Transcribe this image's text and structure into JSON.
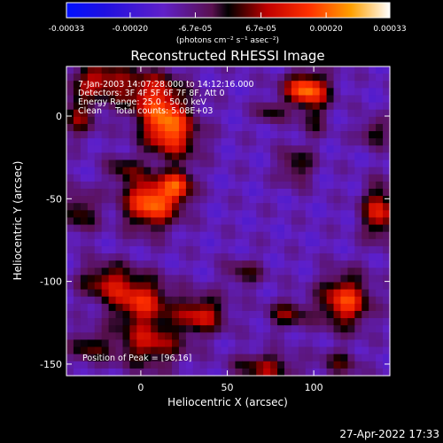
{
  "chart_data": {
    "type": "heatmap",
    "title": "Reconstructed RHESSI Image",
    "xlabel": "Heliocentric X (arcsec)",
    "ylabel": "Heliocentric Y (arcsec)",
    "xlim": [
      -43,
      144
    ],
    "ylim": [
      -157,
      30
    ],
    "xticks": [
      {
        "v": 0,
        "label": "0"
      },
      {
        "v": 50,
        "label": "50"
      },
      {
        "v": 100,
        "label": "100"
      }
    ],
    "yticks": [
      {
        "v": 0,
        "label": "0"
      },
      {
        "v": -50,
        "label": "-50"
      },
      {
        "v": -100,
        "label": "-100"
      },
      {
        "v": -150,
        "label": "-150"
      }
    ],
    "colorbar": {
      "range": [
        -0.00033,
        0.00033
      ],
      "ticks": [
        {
          "v": -0.00033,
          "label": "-0.00033"
        },
        {
          "v": -0.0002,
          "label": "-0.00020"
        },
        {
          "v": -6.7e-05,
          "label": "-6.7e-05"
        },
        {
          "v": 6.7e-05,
          "label": "6.7e-05"
        },
        {
          "v": 0.0002,
          "label": "0.00020"
        },
        {
          "v": 0.00033,
          "label": "0.00033"
        }
      ],
      "units": "(photons cm⁻² s⁻¹ asec⁻²)"
    },
    "annotations": [
      "7-Jan-2003 14:07:28.000 to 14:12:16.000",
      "Detectors: 3F 4F 5F 6F 7F 8F, Att 0",
      "Energy Range: 25.0 - 50.0 keV",
      "Clean     Total counts: 5.08E+03"
    ],
    "peak_label": "Position of Peak = [96,16]",
    "sources": [
      {
        "x": 5,
        "y": 15,
        "sx": 14,
        "sy": 10,
        "a": 0.0002
      },
      {
        "x": 14,
        "y": -3,
        "sx": 10,
        "sy": 10,
        "a": 0.00026
      },
      {
        "x": 20,
        "y": -15,
        "sx": 11,
        "sy": 9,
        "a": 0.00016
      },
      {
        "x": 6,
        "y": -52,
        "sx": 11,
        "sy": 11,
        "a": 0.00033
      },
      {
        "x": 22,
        "y": -42,
        "sx": 6,
        "sy": 7,
        "a": 0.00022
      },
      {
        "x": -10,
        "y": -32,
        "sx": 7,
        "sy": 6,
        "a": 0.00012
      },
      {
        "x": -25,
        "y": 22,
        "sx": 11,
        "sy": 8,
        "a": 0.0002
      },
      {
        "x": -36,
        "y": 0,
        "sx": 7,
        "sy": 9,
        "a": 0.00016
      },
      {
        "x": -35,
        "y": -58,
        "sx": 7,
        "sy": 9,
        "a": 0.00015
      },
      {
        "x": -20,
        "y": -100,
        "sx": 11,
        "sy": 8,
        "a": 0.00018
      },
      {
        "x": 0,
        "y": -112,
        "sx": 12,
        "sy": 10,
        "a": 0.00024
      },
      {
        "x": 35,
        "y": -120,
        "sx": 10,
        "sy": 8,
        "a": 0.00022
      },
      {
        "x": 5,
        "y": -138,
        "sx": 14,
        "sy": 10,
        "a": 0.0002
      },
      {
        "x": -30,
        "y": -140,
        "sx": 8,
        "sy": 7,
        "a": 0.00014
      },
      {
        "x": 60,
        "y": -95,
        "sx": 8,
        "sy": 6,
        "a": 0.00012
      },
      {
        "x": 96,
        "y": 16,
        "sx": 9,
        "sy": 7,
        "a": 0.00033
      },
      {
        "x": 75,
        "y": 2,
        "sx": 6,
        "sy": 5,
        "a": 0.00012
      },
      {
        "x": 100,
        "y": -2,
        "sx": 6,
        "sy": 8,
        "a": 0.0001
      },
      {
        "x": 90,
        "y": -30,
        "sx": 7,
        "sy": 8,
        "a": 0.00014
      },
      {
        "x": 85,
        "y": -120,
        "sx": 8,
        "sy": 6,
        "a": 0.00016
      },
      {
        "x": 118,
        "y": -112,
        "sx": 10,
        "sy": 11,
        "a": 0.00028
      },
      {
        "x": 138,
        "y": -58,
        "sx": 7,
        "sy": 11,
        "a": 0.00024
      },
      {
        "x": 135,
        "y": -10,
        "sx": 6,
        "sy": 6,
        "a": 0.00014
      },
      {
        "x": 72,
        "y": -152,
        "sx": 12,
        "sy": 6,
        "a": 0.00018
      },
      {
        "x": 115,
        "y": -150,
        "sx": 8,
        "sy": 6,
        "a": 0.00012
      }
    ],
    "background": -0.00012
  },
  "timestamp": "27-Apr-2022 17:33"
}
